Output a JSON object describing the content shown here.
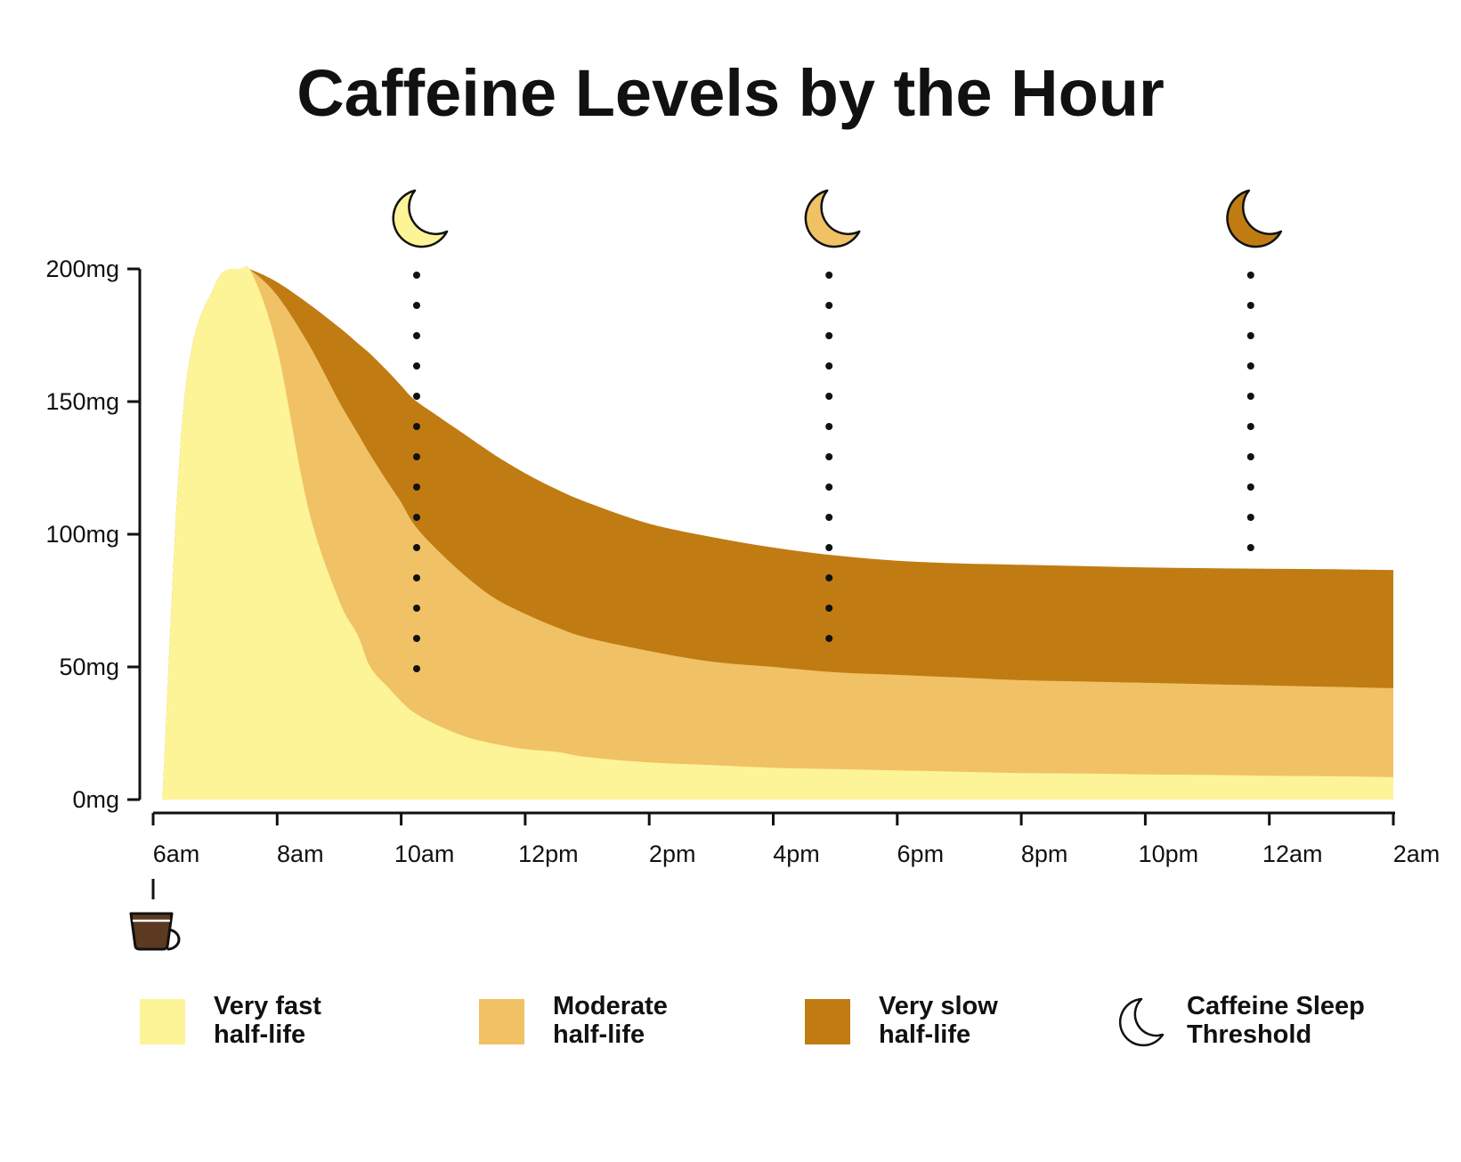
{
  "chart_data": {
    "type": "area",
    "title": "Caffeine Levels by the Hour",
    "xlabel": "",
    "ylabel": "",
    "x_ticks": [
      "6am",
      "8am",
      "10am",
      "12pm",
      "2pm",
      "4pm",
      "6pm",
      "8pm",
      "10pm",
      "12am",
      "2am"
    ],
    "x_range_hours": [
      0,
      20
    ],
    "y_ticks": [
      "0mg",
      "50mg",
      "100mg",
      "150mg",
      "200mg"
    ],
    "ylim": [
      0,
      200
    ],
    "grid": false,
    "legend_position": "bottom",
    "x_hours_after_6am": [
      0.15,
      0.5,
      1.0,
      1.4,
      1.6,
      2.0,
      2.5,
      3.0,
      3.3,
      3.5,
      3.8,
      4.0,
      4.2,
      4.5,
      5.0,
      5.5,
      6.0,
      6.5,
      7.0,
      8.0,
      9.0,
      10.0,
      11.0,
      12.0,
      13.0,
      14.0,
      15.0,
      16.0,
      17.0,
      18.0,
      19.0,
      20.0
    ],
    "series": [
      {
        "name": "Very fast half-life",
        "color": "#FDF497",
        "values": [
          0,
          150,
          194,
          200,
          198,
          170,
          110,
          75,
          62,
          50,
          42,
          37,
          33,
          29,
          24,
          21,
          19,
          18,
          16,
          14,
          13,
          12,
          11.5,
          11,
          10.5,
          10,
          9.8,
          9.5,
          9.3,
          9,
          8.8,
          8.5
        ]
      },
      {
        "name": "Moderate half-life",
        "color": "#F0C265",
        "values": [
          0,
          150,
          194,
          200,
          199,
          190,
          172,
          150,
          138,
          130,
          119,
          112,
          104,
          96,
          85,
          76,
          70,
          65,
          61,
          56,
          52,
          50,
          48,
          47,
          46,
          45,
          44.5,
          44,
          43.5,
          43,
          42.5,
          42
        ]
      },
      {
        "name": "Very slow half-life",
        "color": "#C07C13",
        "values": [
          0,
          150,
          194,
          200,
          199.5,
          195,
          187,
          178,
          172,
          168,
          161,
          156,
          151,
          146,
          138,
          130,
          123,
          117,
          112,
          104,
          99,
          95,
          92,
          90,
          89,
          88.5,
          88,
          87.5,
          87.2,
          87,
          86.8,
          86.5
        ]
      }
    ],
    "sleep_threshold_markers": [
      {
        "name": "Very fast half-life",
        "time_hours_after_6am": 4.25,
        "value_mg": 48,
        "moon_color": "#FDF497"
      },
      {
        "name": "Moderate half-life",
        "time_hours_after_6am": 10.9,
        "value_mg": 59,
        "moon_color": "#F0C265"
      },
      {
        "name": "Very slow half-life",
        "time_hours_after_6am": 17.7,
        "value_mg": 93,
        "moon_color": "#C07C13"
      }
    ],
    "intake_marker": {
      "time_hours_after_6am": 0,
      "icon": "coffee-cup-icon"
    }
  },
  "legend": {
    "items": [
      {
        "line1": "Very fast",
        "line2": "half-life",
        "color": "#FDF497"
      },
      {
        "line1": "Moderate",
        "line2": "half-life",
        "color": "#F0C265"
      },
      {
        "line1": "Very slow",
        "line2": "half-life",
        "color": "#C07C13"
      },
      {
        "line1": "Caffeine Sleep",
        "line2": "Threshold",
        "icon": "moon-icon"
      }
    ]
  },
  "colors": {
    "axis": "#111111",
    "text": "#111111",
    "coffee": "#5C3A21"
  }
}
